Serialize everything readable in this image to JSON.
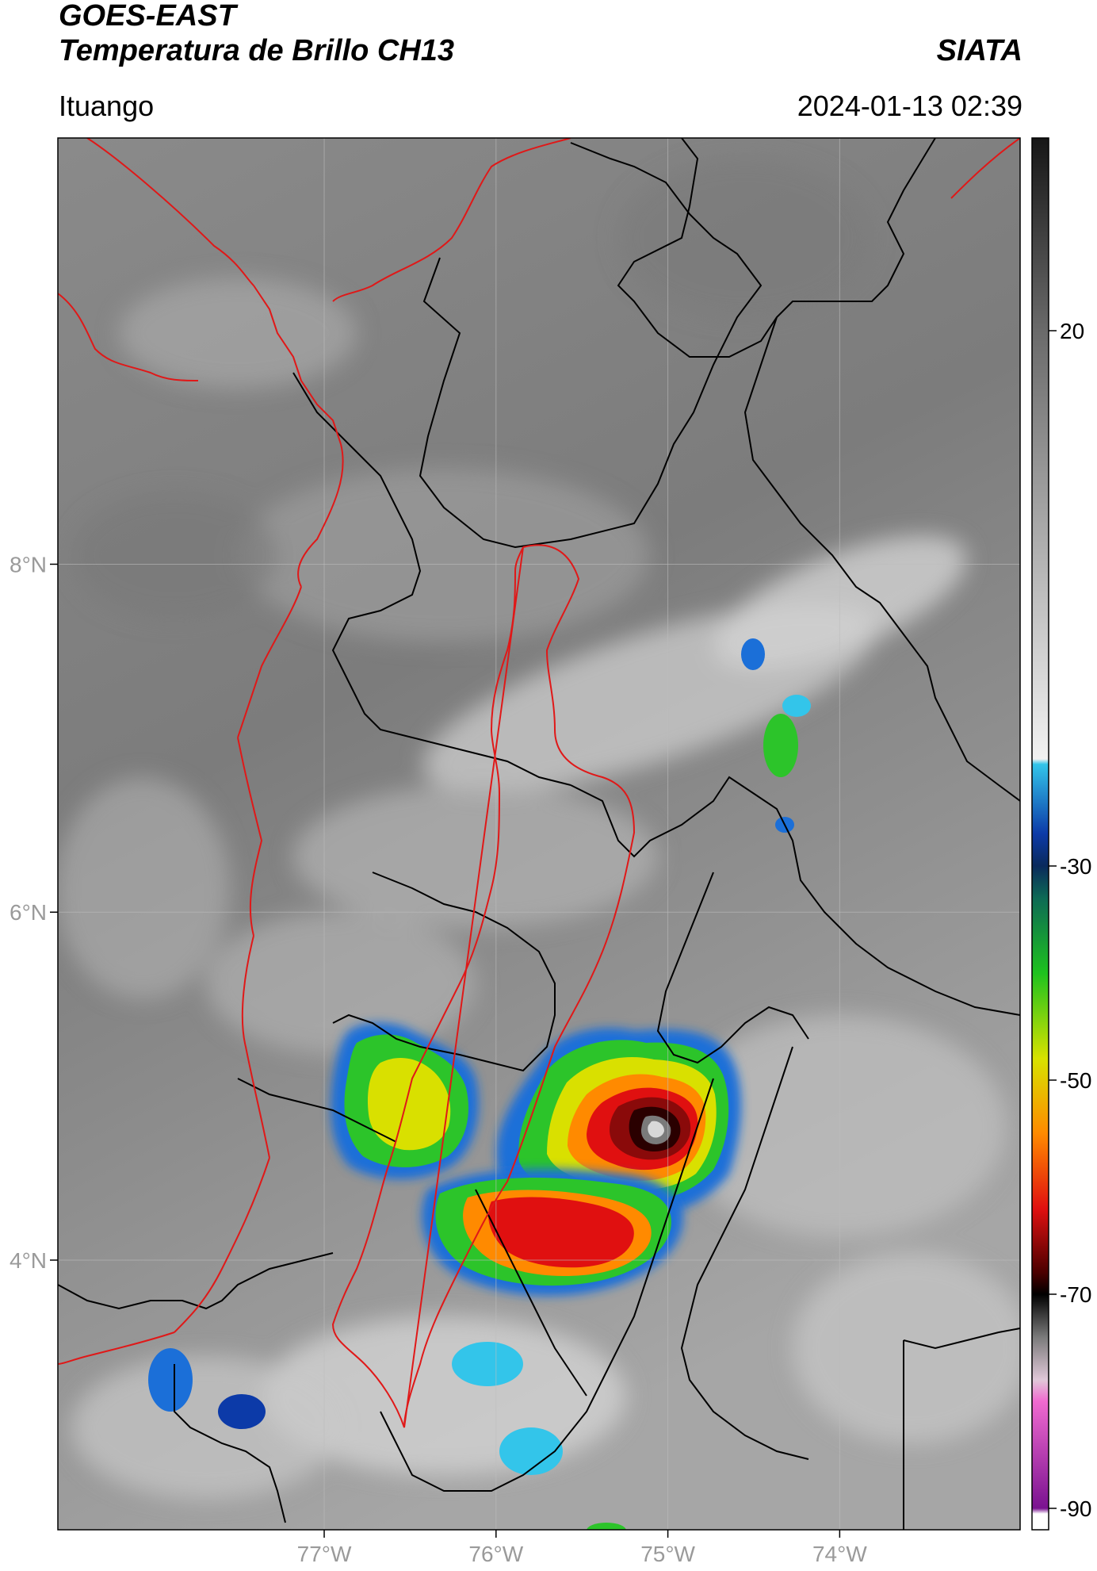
{
  "header": {
    "satellite": "GOES-EAST",
    "product": "Temperatura de Brillo CH13",
    "brand": "SIATA",
    "location": "Ituango",
    "timestamp": "2024-01-13 02:39"
  },
  "map": {
    "lon_range": [
      -78.55,
      -72.95
    ],
    "lat_range": [
      2.45,
      10.45
    ],
    "lat_ticks": [
      {
        "value": 8,
        "label": "8°N"
      },
      {
        "value": 6,
        "label": "6°N"
      },
      {
        "value": 4,
        "label": "4°N"
      }
    ],
    "lon_ticks": [
      {
        "value": -77,
        "label": "77°W"
      },
      {
        "value": -76,
        "label": "76°W"
      },
      {
        "value": -75,
        "label": "75°W"
      },
      {
        "value": -74,
        "label": "74°W"
      }
    ],
    "colors": {
      "boundary": "#000000",
      "coast_and_basin": "#e01818",
      "gridline": "#bdbdbd"
    }
  },
  "colorbar": {
    "range": [
      -92,
      38
    ],
    "ticks": [
      {
        "value": 20,
        "label": "20"
      },
      {
        "value": -30,
        "label": "-30"
      },
      {
        "value": -50,
        "label": "-50"
      },
      {
        "value": -70,
        "label": "-70"
      },
      {
        "value": -90,
        "label": "-90"
      }
    ],
    "stops": [
      {
        "t": 38,
        "color": "#161616"
      },
      {
        "t": 20,
        "color": "#6a6a6a"
      },
      {
        "t": -20,
        "color": "#f2f2f2"
      },
      {
        "t": -20.5,
        "color": "#33c5ea"
      },
      {
        "t": -27,
        "color": "#0c3aa8"
      },
      {
        "t": -30,
        "color": "#0a2a5c"
      },
      {
        "t": -33,
        "color": "#0d6a55"
      },
      {
        "t": -40,
        "color": "#1ec21e"
      },
      {
        "t": -48,
        "color": "#d8e200"
      },
      {
        "t": -55,
        "color": "#ff8a00"
      },
      {
        "t": -62,
        "color": "#e01010"
      },
      {
        "t": -68,
        "color": "#4a0000"
      },
      {
        "t": -70,
        "color": "#000000"
      },
      {
        "t": -74,
        "color": "#7a7a7a"
      },
      {
        "t": -78,
        "color": "#e0c8d8"
      },
      {
        "t": -80,
        "color": "#f06ad0"
      },
      {
        "t": -90,
        "color": "#7a1290"
      },
      {
        "t": -90.5,
        "color": "#ffffff"
      }
    ]
  }
}
